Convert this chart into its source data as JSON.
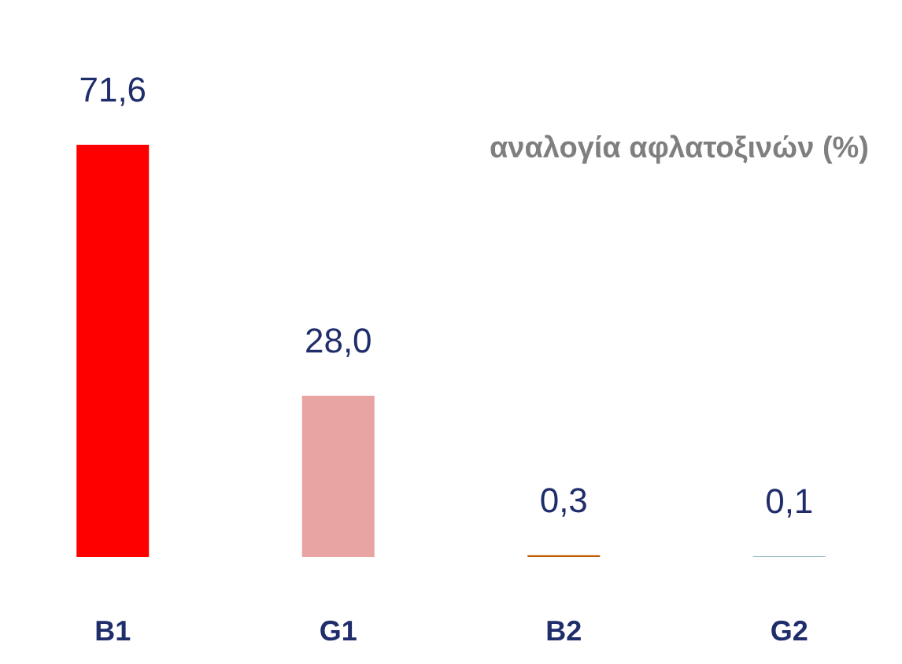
{
  "chart_data": {
    "type": "bar",
    "title": "αναλογία αφλατοξινών (%)",
    "categories": [
      "B1",
      "G1",
      "B2",
      "G2"
    ],
    "values": [
      71.6,
      28.0,
      0.3,
      0.1
    ],
    "value_labels": [
      "71,6",
      "28,0",
      "0,3",
      "0,1"
    ],
    "colors": [
      "#ff0000",
      "#e8a3a3",
      "#c05a00",
      "#6fa3ab"
    ]
  }
}
